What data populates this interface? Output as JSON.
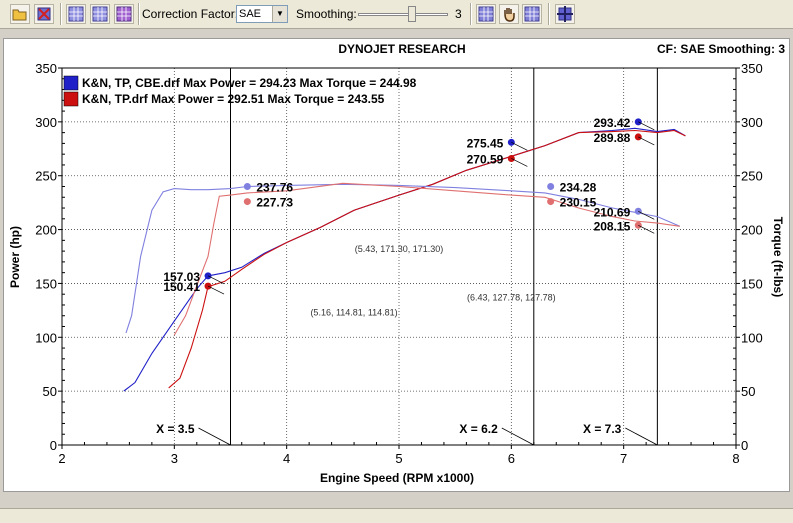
{
  "toolbar": {
    "correction_label": "Correction Factor:",
    "correction_value": "SAE",
    "smoothing_label": "Smoothing:",
    "smoothing_value": "3",
    "icons": [
      "open-file-icon",
      "delete-run-icon",
      "graph-power-icon",
      "graph-torque-icon",
      "graph-both-icon",
      "zoom-icon",
      "pan-hand-icon",
      "table-icon",
      "crosshair-icon"
    ]
  },
  "chart_data": {
    "type": "line",
    "title": "DYNOJET RESEARCH",
    "header_right": "CF: SAE  Smoothing: 3",
    "xlabel": "Engine Speed (RPM x1000)",
    "ylabel_left": "Power (hp)",
    "ylabel_right": "Torque (ft-lbs)",
    "xlim": [
      2,
      8
    ],
    "ylim": [
      0,
      350
    ],
    "x_ticks": [
      "2",
      "3",
      "4",
      "5",
      "6",
      "7",
      "8"
    ],
    "y_ticks": [
      "0",
      "50",
      "100",
      "150",
      "200",
      "250",
      "300",
      "350"
    ],
    "grid": "dotted",
    "colors": {
      "run1": "#2020c8",
      "run2": "#cc1010",
      "run1_light": "#8080e0",
      "run2_light": "#e07070"
    },
    "legend": [
      {
        "label": "K&N, TP, CBE.drf Max Power = 294.23 Max Torque = 244.98"
      },
      {
        "label": "K&N, TP.drf Max Power = 292.51 Max Torque = 243.55"
      }
    ],
    "series": [
      {
        "name": "K&N, TP, CBE.drf",
        "kind": "power",
        "x": [
          2.55,
          2.65,
          2.8,
          3.0,
          3.2,
          3.3,
          3.45,
          3.6,
          3.8,
          4.0,
          4.3,
          4.6,
          5.0,
          5.3,
          5.6,
          6.0,
          6.3,
          6.6,
          6.9,
          7.1,
          7.3,
          7.45,
          7.55
        ],
        "y": [
          50,
          58,
          85,
          115,
          145,
          157,
          160,
          165,
          178,
          188,
          202,
          218,
          232,
          242,
          255,
          268,
          278,
          290,
          292,
          294,
          291,
          293,
          287
        ]
      },
      {
        "name": "K&N, TP.drf",
        "kind": "power",
        "x": [
          2.95,
          3.05,
          3.15,
          3.25,
          3.3,
          3.45,
          3.6,
          3.8,
          4.0,
          4.3,
          4.6,
          5.0,
          5.3,
          5.6,
          6.0,
          6.3,
          6.6,
          6.9,
          7.1,
          7.3,
          7.45,
          7.55
        ],
        "y": [
          53,
          62,
          90,
          125,
          147,
          152,
          163,
          177,
          188,
          202,
          218,
          232,
          242,
          255,
          268,
          278,
          290,
          291,
          292,
          290,
          292,
          287
        ]
      },
      {
        "name": "K&N, TP, CBE.drf",
        "kind": "torque",
        "x": [
          2.57,
          2.62,
          2.7,
          2.8,
          2.9,
          3.0,
          3.15,
          3.3,
          3.5,
          3.65,
          4.0,
          4.5,
          5.0,
          5.5,
          6.0,
          6.3,
          6.6,
          6.9,
          7.1,
          7.3,
          7.5
        ],
        "y": [
          104,
          120,
          175,
          218,
          235,
          238,
          237,
          237,
          238,
          240,
          241,
          242,
          241,
          239,
          236,
          234,
          228,
          220,
          216,
          212,
          203
        ]
      },
      {
        "name": "K&N, TP.drf",
        "kind": "torque",
        "x": [
          3.0,
          3.1,
          3.2,
          3.3,
          3.35,
          3.4,
          3.5,
          3.65,
          4.0,
          4.5,
          5.0,
          5.5,
          6.0,
          6.3,
          6.6,
          6.9,
          7.1,
          7.3,
          7.5
        ],
        "y": [
          102,
          120,
          148,
          175,
          205,
          231,
          232,
          234,
          236,
          243,
          240,
          236,
          232,
          230,
          220,
          212,
          208,
          206,
          203
        ]
      }
    ],
    "markers": [
      {
        "x": 3.3,
        "y": 157.03,
        "label": "157.03",
        "side": "left",
        "color": "#2020c8"
      },
      {
        "x": 3.3,
        "y": 147.5,
        "label": "150.41",
        "side": "left",
        "color": "#cc1010"
      },
      {
        "x": 3.65,
        "y": 240,
        "label": "237.76",
        "side": "right",
        "color": "#8080e0"
      },
      {
        "x": 3.65,
        "y": 226,
        "label": "227.73",
        "side": "right",
        "color": "#e07070"
      },
      {
        "x": 6.0,
        "y": 281,
        "label": "275.45",
        "side": "left",
        "color": "#2020c8"
      },
      {
        "x": 6.0,
        "y": 266,
        "label": "270.59",
        "side": "left",
        "color": "#cc1010"
      },
      {
        "x": 6.35,
        "y": 240,
        "label": "234.28",
        "side": "right",
        "color": "#8080e0"
      },
      {
        "x": 6.35,
        "y": 226,
        "label": "230.15",
        "side": "right",
        "color": "#e07070"
      },
      {
        "x": 7.13,
        "y": 300,
        "label": "293.42",
        "side": "left",
        "color": "#2020c8"
      },
      {
        "x": 7.13,
        "y": 286,
        "label": "289.88",
        "side": "left",
        "color": "#cc1010"
      },
      {
        "x": 7.13,
        "y": 217,
        "label": "210.69",
        "side": "left",
        "color": "#8080e0"
      },
      {
        "x": 7.13,
        "y": 204,
        "label": "208.15",
        "side": "left",
        "color": "#e07070"
      }
    ],
    "cursors": [
      {
        "x": 3.5,
        "label": "X = 3.5"
      },
      {
        "x": 6.2,
        "label": "X = 6.2"
      },
      {
        "x": 7.3,
        "label": "X = 7.3"
      }
    ],
    "annotations": [
      {
        "x": 5.0,
        "y": 179,
        "text": "(5.43, 171.30, 171.30)"
      },
      {
        "x": 4.6,
        "y": 120,
        "text": "(5.16, 114.81, 114.81)"
      },
      {
        "x": 6.0,
        "y": 134,
        "text": "(6.43, 127.78, 127.78)"
      }
    ]
  }
}
